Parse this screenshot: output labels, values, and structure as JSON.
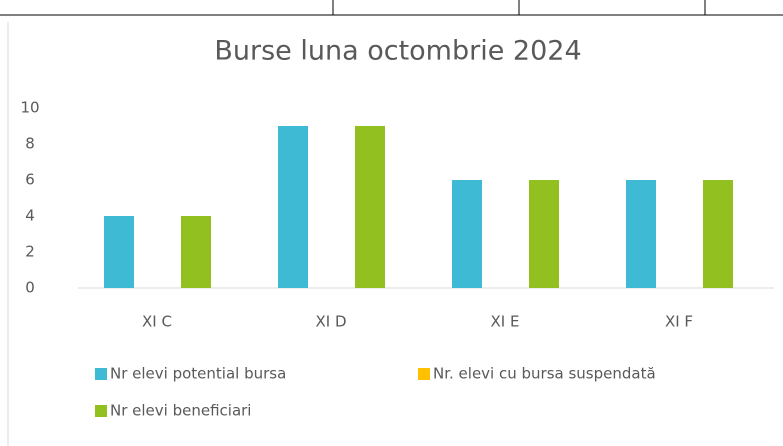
{
  "chart_data": {
    "type": "bar",
    "title": "Burse luna octombrie 2024",
    "categories": [
      "XI C",
      "XI D",
      "XI E",
      "XI F"
    ],
    "series": [
      {
        "name": "Nr elevi potential bursa",
        "color": "#3fbad4",
        "values": [
          4,
          9,
          6,
          6
        ]
      },
      {
        "name": "Nr. elevi cu bursa suspendată",
        "color": "#ffc000",
        "values": [
          0,
          0,
          0,
          0
        ]
      },
      {
        "name": "Nr elevi beneficiari",
        "color": "#92c020",
        "values": [
          4,
          9,
          6,
          6
        ]
      }
    ],
    "ylim": [
      0,
      10
    ],
    "yticks": [
      0,
      2,
      4,
      6,
      8,
      10
    ],
    "grid": false
  }
}
